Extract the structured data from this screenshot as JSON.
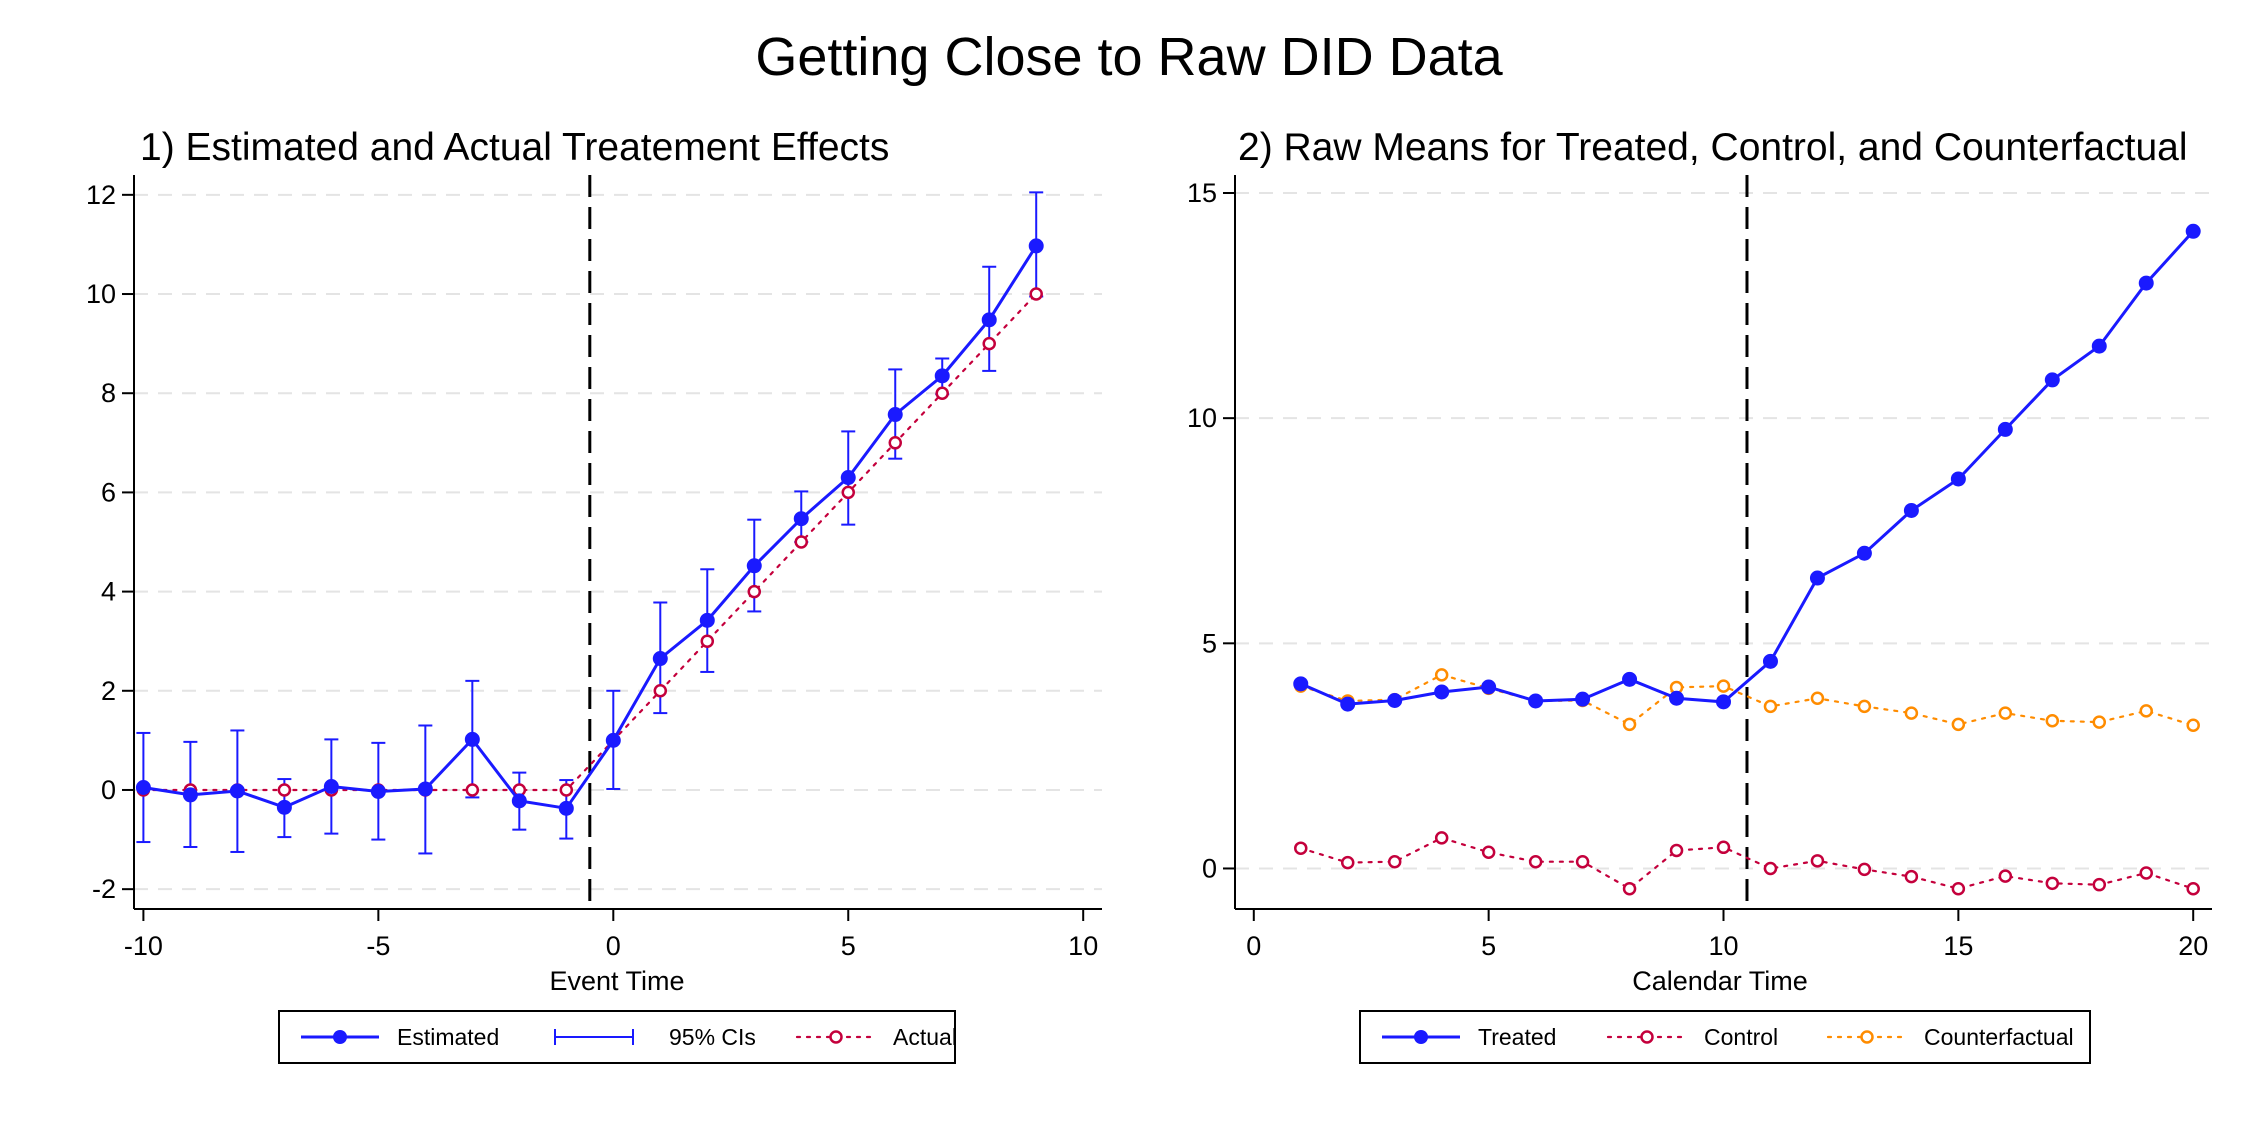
{
  "title": "Getting Close to Raw DID Data",
  "chart_data": [
    {
      "type": "line",
      "title": "1) Estimated and Actual Treatement Effects",
      "xlabel": "Event Time",
      "ylabel": "",
      "xlim": [
        -10.2,
        10.4
      ],
      "ylim": [
        -2.4,
        12.4
      ],
      "xticks": [
        -10,
        -5,
        0,
        5,
        10
      ],
      "yticks": [
        -2,
        0,
        2,
        4,
        6,
        8,
        10,
        12
      ],
      "grid": true,
      "reference_line_x": -0.5,
      "legend_position": "bottom",
      "x": [
        -10,
        -9,
        -8,
        -7,
        -6,
        -5,
        -4,
        -3,
        -2,
        -1,
        0,
        1,
        2,
        3,
        4,
        5,
        6,
        7,
        8,
        9
      ],
      "series": [
        {
          "name": "Estimated",
          "color": "#1a1aff",
          "style": "solid",
          "marker": "filled-circle",
          "values": [
            0.05,
            -0.1,
            -0.02,
            -0.35,
            0.07,
            -0.03,
            0.02,
            1.02,
            -0.22,
            -0.37,
            1.0,
            2.65,
            3.42,
            4.52,
            5.47,
            6.3,
            7.57,
            8.35,
            9.48,
            10.97
          ]
        },
        {
          "name": "95% CIs",
          "color": "#1a1aff",
          "style": "errorbar",
          "lower": [
            -1.05,
            -1.15,
            -1.25,
            -0.95,
            -0.88,
            -1.0,
            -1.28,
            -0.15,
            -0.8,
            -0.98,
            0.02,
            1.55,
            2.38,
            3.6,
            5.0,
            5.35,
            6.68,
            7.98,
            8.45,
            9.95
          ],
          "upper": [
            1.15,
            0.97,
            1.2,
            0.22,
            1.02,
            0.95,
            1.3,
            2.2,
            0.35,
            0.2,
            2.0,
            3.78,
            4.45,
            5.45,
            6.02,
            7.23,
            8.48,
            8.7,
            10.55,
            12.05
          ]
        },
        {
          "name": "Actual",
          "color": "#c4003c",
          "style": "dotted",
          "marker": "hollow-circle",
          "values": [
            0,
            0,
            0,
            0,
            0,
            0,
            0,
            0,
            0,
            0,
            1,
            2,
            3,
            4,
            5,
            6,
            7,
            8,
            9,
            10
          ]
        }
      ]
    },
    {
      "type": "line",
      "title": "2) Raw Means for Treated, Control, and Counterfactual",
      "xlabel": "Calendar Time",
      "ylabel": "",
      "xlim": [
        -0.4,
        20.4
      ],
      "ylim": [
        -0.9,
        15.4
      ],
      "xticks": [
        0,
        5,
        10,
        15,
        20
      ],
      "yticks": [
        0,
        5,
        10,
        15
      ],
      "grid": true,
      "reference_line_x": 10.5,
      "legend_position": "bottom",
      "x": [
        1,
        2,
        3,
        4,
        5,
        6,
        7,
        8,
        9,
        10,
        11,
        12,
        13,
        14,
        15,
        16,
        17,
        18,
        19,
        20
      ],
      "series": [
        {
          "name": "Treated",
          "color": "#1a1aff",
          "style": "solid",
          "marker": "filled-circle",
          "values": [
            4.1,
            3.65,
            3.73,
            3.92,
            4.03,
            3.72,
            3.76,
            4.2,
            3.78,
            3.7,
            4.6,
            6.45,
            7.0,
            7.95,
            8.65,
            9.75,
            10.85,
            11.6,
            13.0,
            14.15
          ]
        },
        {
          "name": "Control",
          "color": "#c4003c",
          "style": "dotted",
          "marker": "hollow-circle",
          "values": [
            0.45,
            0.13,
            0.15,
            0.68,
            0.36,
            0.15,
            0.15,
            -0.45,
            0.4,
            0.47,
            0.0,
            0.17,
            -0.02,
            -0.18,
            -0.45,
            -0.17,
            -0.33,
            -0.36,
            -0.1,
            -0.45
          ]
        },
        {
          "name": "Counterfactual",
          "color": "#ff8c00",
          "style": "dotted",
          "marker": "hollow-circle",
          "values": [
            4.05,
            3.72,
            3.75,
            4.3,
            4.0,
            3.72,
            3.73,
            3.2,
            4.02,
            4.05,
            3.6,
            3.78,
            3.6,
            3.45,
            3.2,
            3.45,
            3.28,
            3.25,
            3.5,
            3.18
          ]
        }
      ]
    }
  ]
}
